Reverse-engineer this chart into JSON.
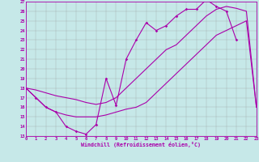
{
  "xlabel": "Windchill (Refroidissement éolien,°C)",
  "bg_color": "#c6e8e8",
  "line_color": "#aa00aa",
  "grid_color": "#999999",
  "xmin": 0,
  "xmax": 23,
  "ymin": 13,
  "ymax": 27,
  "line1_x": [
    0,
    1,
    2,
    3,
    4,
    5,
    6,
    7,
    8,
    9,
    10,
    11,
    12,
    13,
    14,
    15,
    16,
    17,
    18,
    19,
    20,
    21
  ],
  "line1_y": [
    18,
    17,
    16,
    15.5,
    14,
    13.5,
    13.2,
    14.2,
    19.0,
    16.2,
    21.0,
    23.0,
    24.8,
    24.0,
    24.5,
    25.5,
    26.2,
    26.2,
    27.2,
    26.5,
    26.0,
    23.0
  ],
  "line2_x": [
    0,
    1,
    2,
    3,
    4,
    5,
    6,
    7,
    8,
    9,
    10,
    11,
    12,
    13,
    14,
    15,
    16,
    17,
    18,
    19,
    20,
    21,
    22,
    23
  ],
  "line2_y": [
    18.0,
    17.8,
    17.5,
    17.2,
    17.0,
    16.8,
    16.5,
    16.3,
    16.5,
    17.0,
    18.0,
    19.0,
    20.0,
    21.0,
    22.0,
    22.5,
    23.5,
    24.5,
    25.5,
    26.2,
    26.5,
    26.3,
    26.0,
    16.0
  ],
  "line3_x": [
    0,
    1,
    2,
    3,
    4,
    5,
    6,
    7,
    8,
    9,
    10,
    11,
    12,
    13,
    14,
    15,
    16,
    17,
    18,
    19,
    20,
    21,
    22,
    23
  ],
  "line3_y": [
    18.0,
    17.0,
    16.0,
    15.5,
    15.2,
    15.0,
    15.0,
    15.0,
    15.2,
    15.5,
    15.8,
    16.0,
    16.5,
    17.5,
    18.5,
    19.5,
    20.5,
    21.5,
    22.5,
    23.5,
    24.0,
    24.5,
    25.0,
    16.0
  ]
}
